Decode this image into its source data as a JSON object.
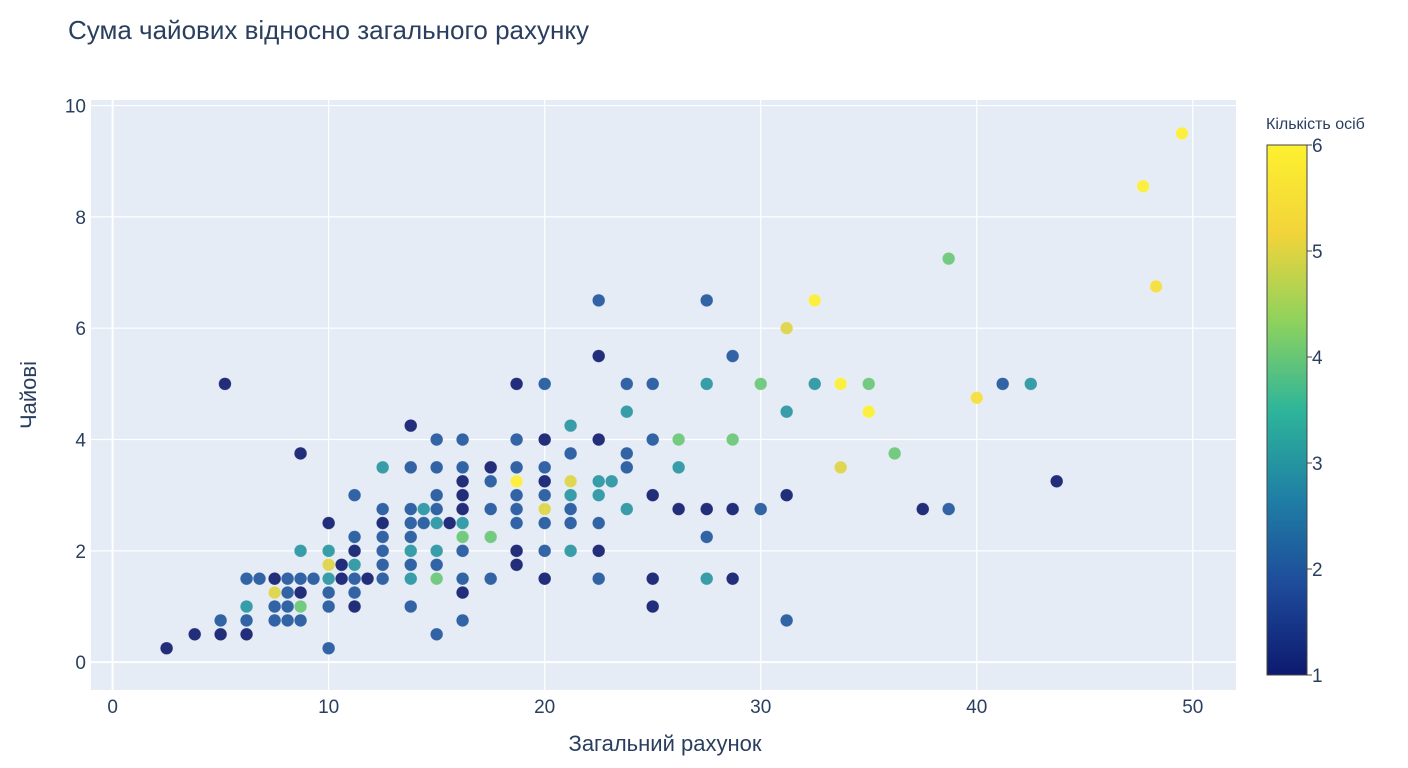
{
  "chart_data": {
    "type": "scatter",
    "title": "Сума чайових відносно загального рахунку",
    "xlabel": "Загальний рахунок",
    "ylabel": "Чайові",
    "xlim": [
      -1,
      52
    ],
    "ylim": [
      -0.5,
      10.1
    ],
    "xticks": [
      0,
      10,
      20,
      30,
      40,
      50
    ],
    "yticks": [
      0,
      2,
      4,
      6,
      8,
      10
    ],
    "grid": true,
    "color_scale": {
      "title": "Кількість осіб",
      "min": 1,
      "max": 6,
      "ticks": [
        1,
        2,
        3,
        4,
        5,
        6
      ],
      "stops": [
        "#0d1a6e",
        "#1e4a9a",
        "#1f7fa5",
        "#2eb59a",
        "#8ed25d",
        "#f2d43a",
        "#fdf02f"
      ]
    },
    "points": [
      [
        2.5,
        0.25,
        1
      ],
      [
        3.8,
        0.5,
        1
      ],
      [
        5,
        0.5,
        1
      ],
      [
        5,
        0.75,
        2
      ],
      [
        5.2,
        5,
        1
      ],
      [
        6.2,
        0.5,
        1
      ],
      [
        6.2,
        0.75,
        2
      ],
      [
        6.2,
        1,
        3
      ],
      [
        6.2,
        1.5,
        2
      ],
      [
        6.8,
        1.5,
        2
      ],
      [
        7.5,
        0.75,
        2
      ],
      [
        7.5,
        1,
        2
      ],
      [
        7.5,
        1.25,
        5
      ],
      [
        7.5,
        1.5,
        1
      ],
      [
        8.1,
        0.75,
        2
      ],
      [
        8.1,
        1,
        2
      ],
      [
        8.1,
        1.25,
        2
      ],
      [
        8.1,
        1.5,
        2
      ],
      [
        8.7,
        0.75,
        2
      ],
      [
        8.7,
        1,
        4
      ],
      [
        8.7,
        1.25,
        1
      ],
      [
        8.7,
        1.5,
        2
      ],
      [
        8.7,
        2,
        3
      ],
      [
        8.7,
        3.75,
        1
      ],
      [
        9.3,
        1.5,
        2
      ],
      [
        10,
        0.25,
        2
      ],
      [
        10,
        1,
        2
      ],
      [
        10,
        1.25,
        2
      ],
      [
        10,
        1.5,
        3
      ],
      [
        10,
        1.75,
        5
      ],
      [
        10,
        2,
        3
      ],
      [
        10,
        2.5,
        1
      ],
      [
        10.6,
        1.5,
        1
      ],
      [
        10.6,
        1.75,
        1
      ],
      [
        11.2,
        1,
        1
      ],
      [
        11.2,
        1.25,
        2
      ],
      [
        11.2,
        1.5,
        2
      ],
      [
        11.2,
        1.75,
        3
      ],
      [
        11.2,
        2,
        1
      ],
      [
        11.2,
        2.25,
        2
      ],
      [
        11.2,
        3,
        2
      ],
      [
        11.8,
        1.5,
        1
      ],
      [
        12.5,
        1.5,
        2
      ],
      [
        12.5,
        1.75,
        2
      ],
      [
        12.5,
        2,
        2
      ],
      [
        12.5,
        2.25,
        2
      ],
      [
        12.5,
        2.5,
        1
      ],
      [
        12.5,
        2.75,
        2
      ],
      [
        12.5,
        3.5,
        3
      ],
      [
        13.8,
        1,
        2
      ],
      [
        13.8,
        1.5,
        3
      ],
      [
        13.8,
        1.75,
        2
      ],
      [
        13.8,
        2,
        3
      ],
      [
        13.8,
        2.25,
        2
      ],
      [
        13.8,
        2.5,
        2
      ],
      [
        13.8,
        2.75,
        2
      ],
      [
        13.8,
        3.5,
        2
      ],
      [
        13.8,
        4.25,
        1
      ],
      [
        14.4,
        2.5,
        2
      ],
      [
        14.4,
        2.75,
        3
      ],
      [
        15,
        0.5,
        2
      ],
      [
        15,
        1.5,
        4
      ],
      [
        15,
        1.75,
        2
      ],
      [
        15,
        2,
        3
      ],
      [
        15,
        2.5,
        3
      ],
      [
        15,
        2.75,
        2
      ],
      [
        15,
        3,
        2
      ],
      [
        15,
        3.5,
        2
      ],
      [
        15,
        4,
        2
      ],
      [
        15.6,
        2.5,
        1
      ],
      [
        16.2,
        0.75,
        2
      ],
      [
        16.2,
        1.25,
        1
      ],
      [
        16.2,
        1.5,
        2
      ],
      [
        16.2,
        2,
        2
      ],
      [
        16.2,
        2.25,
        4
      ],
      [
        16.2,
        2.5,
        3
      ],
      [
        16.2,
        2.75,
        1
      ],
      [
        16.2,
        3,
        1
      ],
      [
        16.2,
        3.25,
        1
      ],
      [
        16.2,
        3.5,
        2
      ],
      [
        16.2,
        4,
        2
      ],
      [
        17.5,
        1.5,
        2
      ],
      [
        17.5,
        2.25,
        4
      ],
      [
        17.5,
        2.75,
        2
      ],
      [
        17.5,
        3.25,
        2
      ],
      [
        17.5,
        3.5,
        1
      ],
      [
        18.7,
        1.75,
        1
      ],
      [
        18.7,
        2,
        1
      ],
      [
        18.7,
        2.5,
        2
      ],
      [
        18.7,
        2.75,
        2
      ],
      [
        18.7,
        3,
        2
      ],
      [
        18.7,
        3.25,
        6
      ],
      [
        18.7,
        3.5,
        2
      ],
      [
        18.7,
        4,
        2
      ],
      [
        18.7,
        5,
        1
      ],
      [
        20,
        1.5,
        1
      ],
      [
        20,
        2,
        2
      ],
      [
        20,
        2.5,
        2
      ],
      [
        20,
        2.75,
        5
      ],
      [
        20,
        3,
        2
      ],
      [
        20,
        3.25,
        1
      ],
      [
        20,
        3.5,
        2
      ],
      [
        20,
        4,
        1
      ],
      [
        20,
        5,
        2
      ],
      [
        21.2,
        2,
        3
      ],
      [
        21.2,
        2.5,
        2
      ],
      [
        21.2,
        2.75,
        2
      ],
      [
        21.2,
        3,
        3
      ],
      [
        21.2,
        3.25,
        5
      ],
      [
        21.2,
        3.75,
        2
      ],
      [
        21.2,
        4.25,
        3
      ],
      [
        22.5,
        1.5,
        2
      ],
      [
        22.5,
        2,
        1
      ],
      [
        22.5,
        2.5,
        2
      ],
      [
        22.5,
        3,
        3
      ],
      [
        22.5,
        3.25,
        3
      ],
      [
        22.5,
        4,
        1
      ],
      [
        22.5,
        5.5,
        1
      ],
      [
        22.5,
        6.5,
        2
      ],
      [
        23.1,
        3.25,
        3
      ],
      [
        23.8,
        2.75,
        3
      ],
      [
        23.8,
        3.5,
        2
      ],
      [
        23.8,
        3.75,
        2
      ],
      [
        23.8,
        4.5,
        3
      ],
      [
        23.8,
        5,
        2
      ],
      [
        25,
        1,
        1
      ],
      [
        25,
        1.5,
        1
      ],
      [
        25,
        3,
        1
      ],
      [
        25,
        4,
        2
      ],
      [
        25,
        5,
        2
      ],
      [
        26.2,
        2.75,
        1
      ],
      [
        26.2,
        3.5,
        3
      ],
      [
        26.2,
        4,
        4
      ],
      [
        27.5,
        1.5,
        3
      ],
      [
        27.5,
        2.25,
        2
      ],
      [
        27.5,
        2.75,
        1
      ],
      [
        27.5,
        5,
        3
      ],
      [
        27.5,
        6.5,
        2
      ],
      [
        28.7,
        1.5,
        1
      ],
      [
        28.7,
        2.75,
        1
      ],
      [
        28.7,
        4,
        4
      ],
      [
        28.7,
        5.5,
        2
      ],
      [
        30,
        2.75,
        2
      ],
      [
        30,
        5,
        4
      ],
      [
        31.2,
        0.75,
        2
      ],
      [
        31.2,
        3,
        1
      ],
      [
        31.2,
        4.5,
        3
      ],
      [
        31.2,
        6,
        5
      ],
      [
        32.5,
        5,
        3
      ],
      [
        32.5,
        6.5,
        6
      ],
      [
        33.7,
        3.5,
        5
      ],
      [
        33.7,
        5,
        6
      ],
      [
        35,
        4.5,
        6
      ],
      [
        35,
        5,
        4
      ],
      [
        36.2,
        3.75,
        4
      ],
      [
        37.5,
        2.75,
        1
      ],
      [
        38.7,
        2.75,
        2
      ],
      [
        38.7,
        7.25,
        4
      ],
      [
        40,
        4.75,
        5.5
      ],
      [
        41.2,
        5,
        2
      ],
      [
        42.5,
        5,
        3
      ],
      [
        43.7,
        3.25,
        1
      ],
      [
        47.7,
        8.55,
        6
      ],
      [
        48.3,
        6.75,
        5.5
      ],
      [
        49.5,
        9.5,
        6
      ]
    ]
  }
}
